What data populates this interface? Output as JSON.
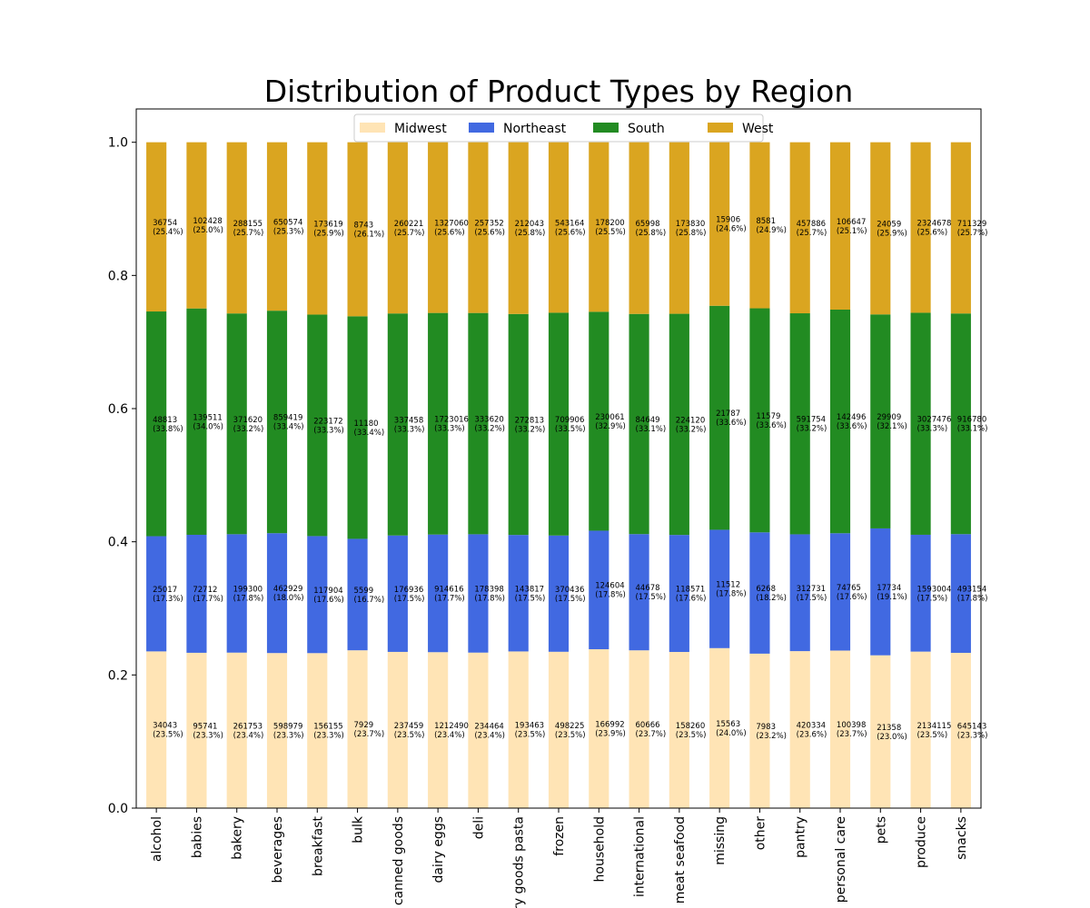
{
  "chart_data": {
    "type": "bar",
    "stacked": true,
    "normalized": true,
    "title": "Distribution of Product Types by Region",
    "xlabel": "",
    "ylabel": "",
    "ylim": [
      0,
      1.05
    ],
    "yticks": [
      "0.0",
      "0.2",
      "0.4",
      "0.6",
      "0.8",
      "1.0"
    ],
    "legend_position": "top-center",
    "grid": false,
    "categories": [
      "alcohol",
      "babies",
      "bakery",
      "beverages",
      "breakfast",
      "bulk",
      "canned goods",
      "dairy eggs",
      "deli",
      "dry goods pasta",
      "frozen",
      "household",
      "international",
      "meat seafood",
      "missing",
      "other",
      "pantry",
      "personal care",
      "pets",
      "produce",
      "snacks"
    ],
    "series": [
      {
        "name": "Midwest",
        "color": "#ffe4b5",
        "counts": [
          34043,
          95741,
          261753,
          598979,
          156155,
          7929,
          237459,
          1212490,
          234464,
          193463,
          498225,
          166992,
          60666,
          158260,
          15563,
          7983,
          420334,
          100398,
          21358,
          2134115,
          645143
        ],
        "percents": [
          23.5,
          23.3,
          23.4,
          23.3,
          23.3,
          23.7,
          23.5,
          23.4,
          23.4,
          23.5,
          23.5,
          23.9,
          23.7,
          23.5,
          24.0,
          23.2,
          23.6,
          23.7,
          23.0,
          23.5,
          23.3
        ]
      },
      {
        "name": "Northeast",
        "color": "#4169e1",
        "counts": [
          25017,
          72712,
          199300,
          462929,
          117904,
          5599,
          176936,
          914616,
          178398,
          143817,
          370436,
          124604,
          44678,
          118571,
          11512,
          6268,
          312731,
          74765,
          17734,
          1593004,
          493154
        ],
        "percents": [
          17.3,
          17.7,
          17.8,
          18.0,
          17.6,
          16.7,
          17.5,
          17.7,
          17.8,
          17.5,
          17.5,
          17.8,
          17.5,
          17.6,
          17.8,
          18.2,
          17.5,
          17.6,
          19.1,
          17.5,
          17.8
        ]
      },
      {
        "name": "South",
        "color": "#228b22",
        "counts": [
          48813,
          139511,
          371620,
          859419,
          223172,
          11180,
          337458,
          1723016,
          333620,
          272813,
          709906,
          230061,
          84649,
          224120,
          21787,
          11579,
          591754,
          142496,
          29909,
          3027476,
          916780
        ],
        "percents": [
          33.8,
          34.0,
          33.2,
          33.4,
          33.3,
          33.4,
          33.3,
          33.3,
          33.2,
          33.2,
          33.5,
          32.9,
          33.1,
          33.2,
          33.6,
          33.6,
          33.2,
          33.6,
          32.1,
          33.3,
          33.1
        ]
      },
      {
        "name": "West",
        "color": "#daa520",
        "counts": [
          36754,
          102428,
          288155,
          650574,
          173619,
          8743,
          260221,
          1327060,
          257352,
          212043,
          543164,
          178200,
          65998,
          173830,
          15906,
          8581,
          457886,
          106647,
          24059,
          2324678,
          711329
        ],
        "percents": [
          25.4,
          25.0,
          25.7,
          25.3,
          25.9,
          26.1,
          25.7,
          25.6,
          25.6,
          25.8,
          25.6,
          25.5,
          25.8,
          25.8,
          24.6,
          24.9,
          25.7,
          25.1,
          25.9,
          25.6,
          25.7
        ]
      }
    ]
  }
}
